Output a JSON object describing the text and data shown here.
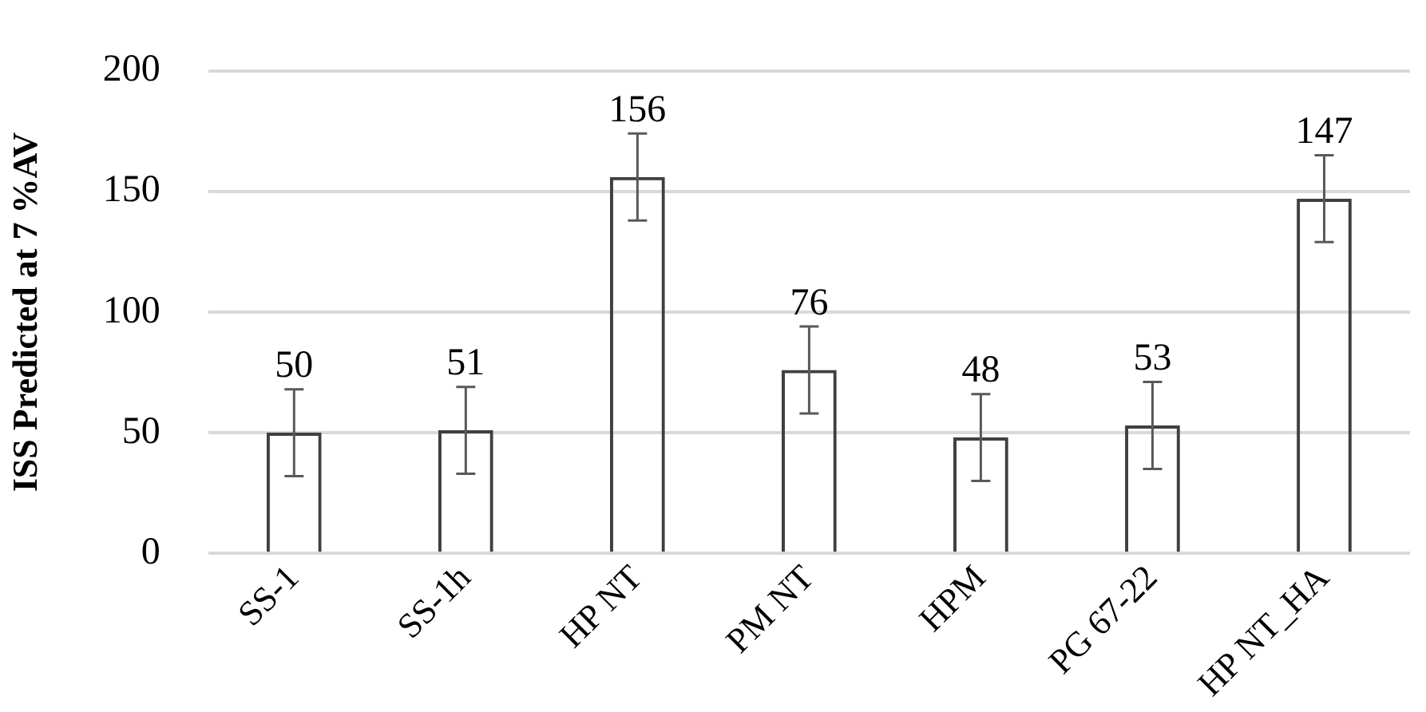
{
  "chart_data": {
    "type": "bar",
    "ylabel": "ISS Predicted at 7 %AV",
    "categories": [
      "SS-1",
      "SS-1h",
      "HP NT",
      "PM NT",
      "HPM",
      "PG 67-22",
      "HP NT_HA"
    ],
    "values": [
      50,
      51,
      156,
      76,
      48,
      53,
      147
    ],
    "errors": [
      18,
      18,
      18,
      18,
      18,
      18,
      18
    ],
    "color": "#404040",
    "ylim": [
      0,
      200
    ],
    "yticks": [
      0,
      50,
      100,
      150,
      200
    ],
    "grid": "y",
    "data_labels": true,
    "legend": false
  }
}
